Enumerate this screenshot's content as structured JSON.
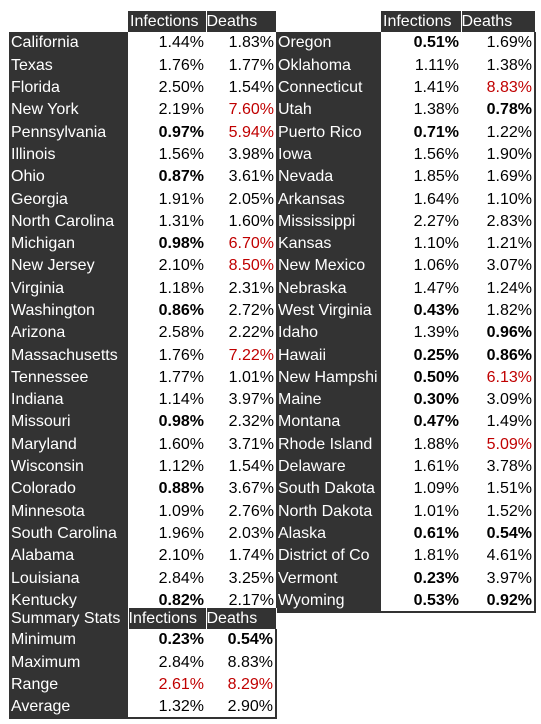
{
  "headers": {
    "infections": "Infections",
    "deaths": "Deaths"
  },
  "left": [
    {
      "state": "California",
      "inf": "1.44%",
      "dth": "1.83%",
      "ib": false,
      "ir": false,
      "db": false,
      "dr": false
    },
    {
      "state": "Texas",
      "inf": "1.76%",
      "dth": "1.77%",
      "ib": false,
      "ir": false,
      "db": false,
      "dr": false
    },
    {
      "state": "Florida",
      "inf": "2.50%",
      "dth": "1.54%",
      "ib": false,
      "ir": false,
      "db": false,
      "dr": false
    },
    {
      "state": "New York",
      "inf": "2.19%",
      "dth": "7.60%",
      "ib": false,
      "ir": false,
      "db": false,
      "dr": true
    },
    {
      "state": "Pennsylvania",
      "inf": "0.97%",
      "dth": "5.94%",
      "ib": true,
      "ir": false,
      "db": false,
      "dr": true
    },
    {
      "state": "Illinois",
      "inf": "1.56%",
      "dth": "3.98%",
      "ib": false,
      "ir": false,
      "db": false,
      "dr": false
    },
    {
      "state": "Ohio",
      "inf": "0.87%",
      "dth": "3.61%",
      "ib": true,
      "ir": false,
      "db": false,
      "dr": false
    },
    {
      "state": "Georgia",
      "inf": "1.91%",
      "dth": "2.05%",
      "ib": false,
      "ir": false,
      "db": false,
      "dr": false
    },
    {
      "state": "North Carolina",
      "inf": "1.31%",
      "dth": "1.60%",
      "ib": false,
      "ir": false,
      "db": false,
      "dr": false
    },
    {
      "state": "Michigan",
      "inf": "0.98%",
      "dth": "6.70%",
      "ib": true,
      "ir": false,
      "db": false,
      "dr": true
    },
    {
      "state": "New Jersey",
      "inf": "2.10%",
      "dth": "8.50%",
      "ib": false,
      "ir": false,
      "db": false,
      "dr": true
    },
    {
      "state": "Virginia",
      "inf": "1.18%",
      "dth": "2.31%",
      "ib": false,
      "ir": false,
      "db": false,
      "dr": false
    },
    {
      "state": "Washington",
      "inf": "0.86%",
      "dth": "2.72%",
      "ib": true,
      "ir": false,
      "db": false,
      "dr": false
    },
    {
      "state": "Arizona",
      "inf": "2.58%",
      "dth": "2.22%",
      "ib": false,
      "ir": false,
      "db": false,
      "dr": false
    },
    {
      "state": "Massachusetts",
      "inf": "1.76%",
      "dth": "7.22%",
      "ib": false,
      "ir": false,
      "db": false,
      "dr": true
    },
    {
      "state": "Tennessee",
      "inf": "1.77%",
      "dth": "1.01%",
      "ib": false,
      "ir": false,
      "db": false,
      "dr": false
    },
    {
      "state": "Indiana",
      "inf": "1.14%",
      "dth": "3.97%",
      "ib": false,
      "ir": false,
      "db": false,
      "dr": false
    },
    {
      "state": "Missouri",
      "inf": "0.98%",
      "dth": "2.32%",
      "ib": true,
      "ir": false,
      "db": false,
      "dr": false
    },
    {
      "state": "Maryland",
      "inf": "1.60%",
      "dth": "3.71%",
      "ib": false,
      "ir": false,
      "db": false,
      "dr": false
    },
    {
      "state": "Wisconsin",
      "inf": "1.12%",
      "dth": "1.54%",
      "ib": false,
      "ir": false,
      "db": false,
      "dr": false
    },
    {
      "state": "Colorado",
      "inf": "0.88%",
      "dth": "3.67%",
      "ib": true,
      "ir": false,
      "db": false,
      "dr": false
    },
    {
      "state": "Minnesota",
      "inf": "1.09%",
      "dth": "2.76%",
      "ib": false,
      "ir": false,
      "db": false,
      "dr": false
    },
    {
      "state": "South Carolina",
      "inf": "1.96%",
      "dth": "2.03%",
      "ib": false,
      "ir": false,
      "db": false,
      "dr": false
    },
    {
      "state": "Alabama",
      "inf": "2.10%",
      "dth": "1.74%",
      "ib": false,
      "ir": false,
      "db": false,
      "dr": false
    },
    {
      "state": "Louisiana",
      "inf": "2.84%",
      "dth": "3.25%",
      "ib": false,
      "ir": false,
      "db": false,
      "dr": false
    },
    {
      "state": "Kentucky",
      "inf": "0.82%",
      "dth": "2.17%",
      "ib": true,
      "ir": false,
      "db": false,
      "dr": false
    }
  ],
  "right": [
    {
      "state": "Oregon",
      "inf": "0.51%",
      "dth": "1.69%",
      "ib": true,
      "ir": false,
      "db": false,
      "dr": false
    },
    {
      "state": "Oklahoma",
      "inf": "1.11%",
      "dth": "1.38%",
      "ib": false,
      "ir": false,
      "db": false,
      "dr": false
    },
    {
      "state": "Connecticut",
      "inf": "1.41%",
      "dth": "8.83%",
      "ib": false,
      "ir": false,
      "db": false,
      "dr": true
    },
    {
      "state": "Utah",
      "inf": "1.38%",
      "dth": "0.78%",
      "ib": false,
      "ir": false,
      "db": true,
      "dr": false
    },
    {
      "state": "Puerto Rico",
      "inf": "0.71%",
      "dth": "1.22%",
      "ib": true,
      "ir": false,
      "db": false,
      "dr": false
    },
    {
      "state": "Iowa",
      "inf": "1.56%",
      "dth": "1.90%",
      "ib": false,
      "ir": false,
      "db": false,
      "dr": false
    },
    {
      "state": "Nevada",
      "inf": "1.85%",
      "dth": "1.69%",
      "ib": false,
      "ir": false,
      "db": false,
      "dr": false
    },
    {
      "state": "Arkansas",
      "inf": "1.64%",
      "dth": "1.10%",
      "ib": false,
      "ir": false,
      "db": false,
      "dr": false
    },
    {
      "state": "Mississippi",
      "inf": "2.27%",
      "dth": "2.83%",
      "ib": false,
      "ir": false,
      "db": false,
      "dr": false
    },
    {
      "state": "Kansas",
      "inf": "1.10%",
      "dth": "1.21%",
      "ib": false,
      "ir": false,
      "db": false,
      "dr": false
    },
    {
      "state": "New Mexico",
      "inf": "1.06%",
      "dth": "3.07%",
      "ib": false,
      "ir": false,
      "db": false,
      "dr": false
    },
    {
      "state": "Nebraska",
      "inf": "1.47%",
      "dth": "1.24%",
      "ib": false,
      "ir": false,
      "db": false,
      "dr": false
    },
    {
      "state": "West Virginia",
      "inf": "0.43%",
      "dth": "1.82%",
      "ib": true,
      "ir": false,
      "db": false,
      "dr": false
    },
    {
      "state": "Idaho",
      "inf": "1.39%",
      "dth": "0.96%",
      "ib": false,
      "ir": false,
      "db": true,
      "dr": false
    },
    {
      "state": "Hawaii",
      "inf": "0.25%",
      "dth": "0.86%",
      "ib": true,
      "ir": false,
      "db": true,
      "dr": false
    },
    {
      "state": "New Hampshi",
      "inf": "0.50%",
      "dth": "6.13%",
      "ib": true,
      "ir": false,
      "db": false,
      "dr": true
    },
    {
      "state": "Maine",
      "inf": "0.30%",
      "dth": "3.09%",
      "ib": true,
      "ir": false,
      "db": false,
      "dr": false
    },
    {
      "state": "Montana",
      "inf": "0.47%",
      "dth": "1.49%",
      "ib": true,
      "ir": false,
      "db": false,
      "dr": false
    },
    {
      "state": "Rhode Island",
      "inf": "1.88%",
      "dth": "5.09%",
      "ib": false,
      "ir": false,
      "db": false,
      "dr": true
    },
    {
      "state": "Delaware",
      "inf": "1.61%",
      "dth": "3.78%",
      "ib": false,
      "ir": false,
      "db": false,
      "dr": false
    },
    {
      "state": "South Dakota",
      "inf": "1.09%",
      "dth": "1.51%",
      "ib": false,
      "ir": false,
      "db": false,
      "dr": false
    },
    {
      "state": "North Dakota",
      "inf": "1.01%",
      "dth": "1.52%",
      "ib": false,
      "ir": false,
      "db": false,
      "dr": false
    },
    {
      "state": "Alaska",
      "inf": "0.61%",
      "dth": "0.54%",
      "ib": true,
      "ir": false,
      "db": true,
      "dr": false
    },
    {
      "state": "District of Co",
      "inf": "1.81%",
      "dth": "4.61%",
      "ib": false,
      "ir": false,
      "db": false,
      "dr": false
    },
    {
      "state": "Vermont",
      "inf": "0.23%",
      "dth": "3.97%",
      "ib": true,
      "ir": false,
      "db": false,
      "dr": false
    },
    {
      "state": "Wyoming",
      "inf": "0.53%",
      "dth": "0.92%",
      "ib": true,
      "ir": false,
      "db": true,
      "dr": false
    }
  ],
  "summary": {
    "title": "Summary Stats",
    "rows": [
      {
        "label": "Minimum",
        "inf": "0.23%",
        "dth": "0.54%",
        "ib": true,
        "ir": false,
        "db": true,
        "dr": false
      },
      {
        "label": "Maximum",
        "inf": "2.84%",
        "dth": "8.83%",
        "ib": false,
        "ir": false,
        "db": false,
        "dr": false
      },
      {
        "label": "Range",
        "inf": "2.61%",
        "dth": "8.29%",
        "ib": false,
        "ir": true,
        "db": false,
        "dr": true
      },
      {
        "label": "Average",
        "inf": "1.32%",
        "dth": "2.90%",
        "ib": false,
        "ir": false,
        "db": false,
        "dr": false
      }
    ]
  }
}
